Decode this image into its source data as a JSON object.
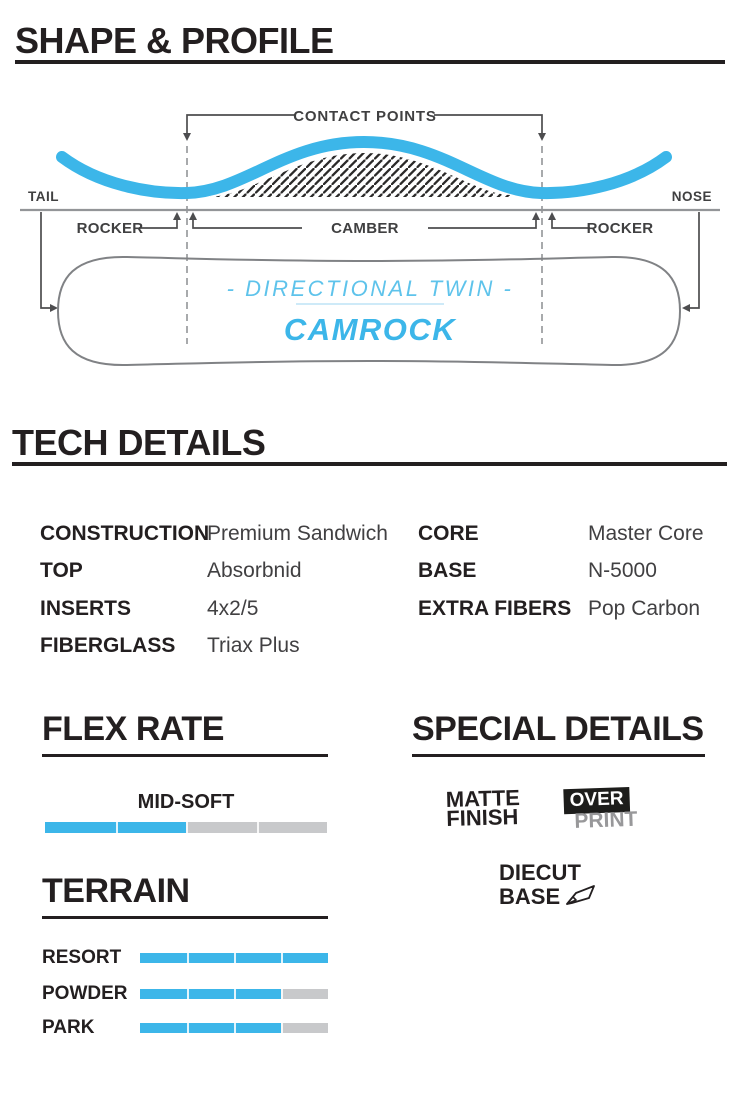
{
  "colors": {
    "accent_blue": "#3cb6e9",
    "light_blue": "#6cc7ed",
    "bar_gray": "#c8c9cb",
    "line_gray": "#808285",
    "ink": "#231f20"
  },
  "shape_profile": {
    "title": "SHAPE & PROFILE",
    "contact_points": "CONTACT POINTS",
    "tail": "TAIL",
    "nose": "NOSE",
    "rocker_left": "ROCKER",
    "camber": "CAMBER",
    "rocker_right": "ROCKER",
    "board_type": "- DIRECTIONAL TWIN -",
    "profile_name": "CAMROCK"
  },
  "tech_details": {
    "title": "TECH DETAILS",
    "left": [
      {
        "label": "CONSTRUCTION",
        "value": "Premium Sandwich"
      },
      {
        "label": "TOP",
        "value": "Absorbnid"
      },
      {
        "label": "INSERTS",
        "value": "4x2/5"
      },
      {
        "label": "FIBERGLASS",
        "value": "Triax Plus"
      }
    ],
    "right": [
      {
        "label": "CORE",
        "value": "Master Core"
      },
      {
        "label": "BASE",
        "value": "N-5000"
      },
      {
        "label": "EXTRA FIBERS",
        "value": "Pop Carbon"
      }
    ]
  },
  "flex_rate": {
    "title": "FLEX RATE",
    "level": "MID-SOFT",
    "fill_percent": 50
  },
  "special_details": {
    "title": "SPECIAL DETAILS",
    "matte": {
      "line1": "MATTE",
      "line2": "FINISH"
    },
    "overprint": {
      "line1": "OVER",
      "line2": "PRINT"
    },
    "diecut": {
      "line1": "DIECUT",
      "line2": "BASE"
    }
  },
  "terrain": {
    "title": "TERRAIN",
    "rows": [
      {
        "label": "RESORT",
        "fill_percent": 100
      },
      {
        "label": "POWDER",
        "fill_percent": 75
      },
      {
        "label": "PARK",
        "fill_percent": 75
      }
    ]
  }
}
